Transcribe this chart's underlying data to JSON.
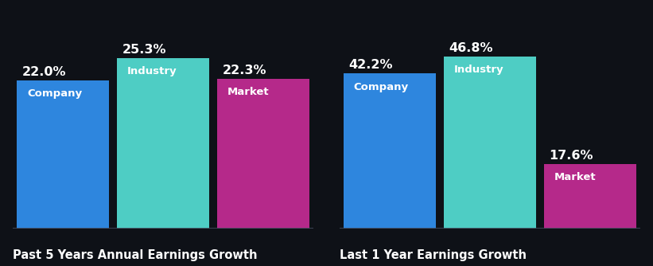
{
  "background_color": "#0e1117",
  "groups": [
    {
      "title": "Past 5 Years Annual Earnings Growth",
      "bars": [
        {
          "label": "Company",
          "value": 22.0,
          "color": "#2e86de"
        },
        {
          "label": "Industry",
          "value": 25.3,
          "color": "#4ecdc4"
        },
        {
          "label": "Market",
          "value": 22.3,
          "color": "#b5298a"
        }
      ]
    },
    {
      "title": "Last 1 Year Earnings Growth",
      "bars": [
        {
          "label": "Company",
          "value": 42.2,
          "color": "#2e86de"
        },
        {
          "label": "Industry",
          "value": 46.8,
          "color": "#4ecdc4"
        },
        {
          "label": "Market",
          "value": 17.6,
          "color": "#b5298a"
        }
      ]
    }
  ],
  "text_color": "#ffffff",
  "title_color": "#ffffff",
  "separator_color": "#444c5e",
  "value_fontsize": 11.5,
  "label_fontsize": 9.5,
  "title_fontsize": 10.5,
  "ylim_left": [
    0,
    30
  ],
  "ylim_right": [
    0,
    55
  ]
}
